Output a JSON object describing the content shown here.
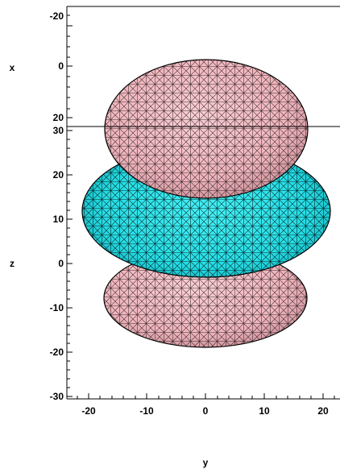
{
  "colors": {
    "lobe_pink": "#f2b8c0",
    "lobe_pink_shade": "#c98f98",
    "torus_cyan": "#2ee6ec",
    "torus_cyan_shade": "#12aab4",
    "mesh": "#000000",
    "axis": "#000000"
  },
  "top_panel": {
    "axis_label": "x",
    "ticks": [
      "-20",
      "0",
      "20"
    ]
  },
  "main_panel": {
    "axis_label_vertical": "z",
    "axis_label_horizontal": "y",
    "z_ticks": [
      "30",
      "20",
      "10",
      "0",
      "-10",
      "-20",
      "-30"
    ],
    "y_ticks": [
      "-20",
      "-10",
      "0",
      "10",
      "20"
    ]
  }
}
